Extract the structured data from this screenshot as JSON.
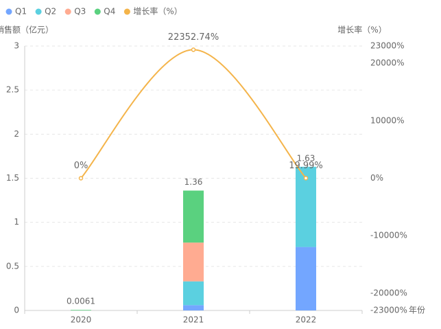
{
  "chart_data": {
    "type": "bar-line",
    "y_label": "销售额（亿元）",
    "y2_label": "增长率（%）",
    "x_label": "年份",
    "categories": [
      "2020",
      "2021",
      "2022"
    ],
    "series": [
      {
        "name": "Q1",
        "color": "#73a6ff",
        "values": [
          null,
          0.06,
          0.72
        ]
      },
      {
        "name": "Q2",
        "color": "#5bd0e0",
        "values": [
          null,
          0.27,
          0.91
        ]
      },
      {
        "name": "Q3",
        "color": "#ffab91",
        "values": [
          null,
          0.44,
          null
        ]
      },
      {
        "name": "Q4",
        "color": "#5ad17f",
        "values": [
          0.0061,
          0.59,
          null
        ]
      },
      {
        "name": "增长率（%）",
        "color": "#f4b44a",
        "axis": "y2",
        "values": [
          0,
          22352.74,
          19.99
        ],
        "value_labels": [
          "0%",
          "22352.74%",
          "19.99%"
        ]
      }
    ],
    "totals": [
      0.0061,
      1.36,
      1.63
    ],
    "ylim": [
      0,
      3
    ],
    "yticks": [
      0,
      0.5,
      1,
      1.5,
      2,
      2.5,
      3
    ],
    "y2lim": [
      -23000,
      23000
    ],
    "y2ticks": [
      {
        "value": -23000,
        "label": "-23000%"
      },
      {
        "value": -20000,
        "label": "-20000%"
      },
      {
        "value": -10000,
        "label": "-10000%"
      },
      {
        "value": 0,
        "label": "0%"
      },
      {
        "value": 10000,
        "label": "10000%"
      },
      {
        "value": 20000,
        "label": "20000%"
      },
      {
        "value": 23000,
        "label": "23000%"
      }
    ],
    "grid": true
  }
}
